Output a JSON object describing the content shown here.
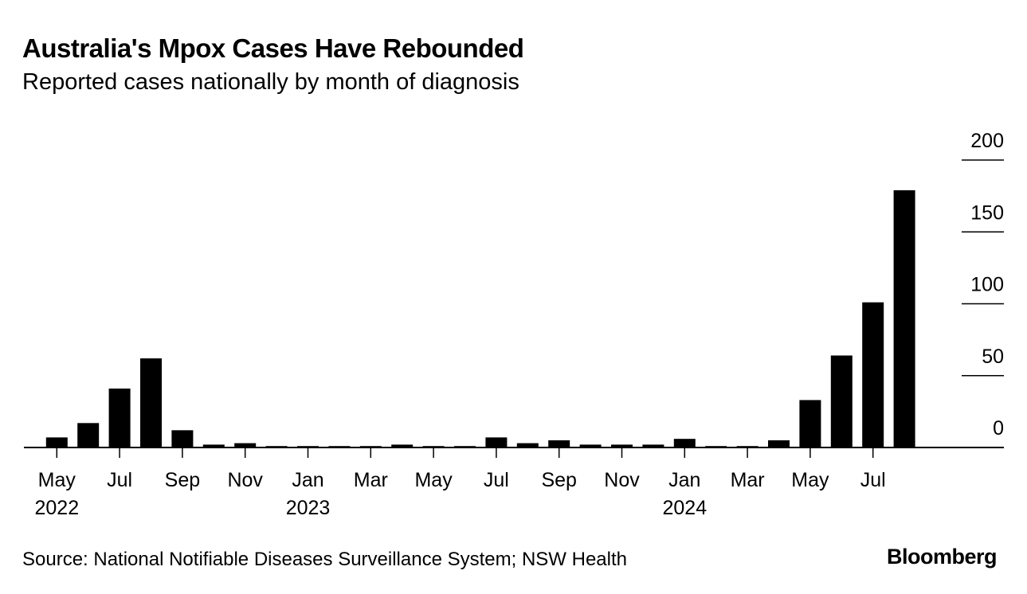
{
  "header": {
    "title": "Australia's Mpox Cases Have Rebounded",
    "subtitle": "Reported cases nationally by month of diagnosis"
  },
  "footer": {
    "source": "Source: National Notifiable Diseases Surveillance System; NSW Health",
    "brand": "Bloomberg"
  },
  "colors": {
    "bar": "#000000",
    "axis": "#000000",
    "text": "#000000"
  },
  "chart_data": {
    "type": "bar",
    "title": "Australia's Mpox Cases Have Rebounded",
    "subtitle": "Reported cases nationally by month of diagnosis",
    "xlabel": "",
    "ylabel": "",
    "ylim": [
      0,
      200
    ],
    "yticks": [
      0,
      50,
      100,
      150,
      200
    ],
    "grid": false,
    "yaxis_side": "right",
    "categories": [
      "May 2022",
      "Jun 2022",
      "Jul 2022",
      "Aug 2022",
      "Sep 2022",
      "Oct 2022",
      "Nov 2022",
      "Dec 2022",
      "Jan 2023",
      "Feb 2023",
      "Mar 2023",
      "Apr 2023",
      "May 2023",
      "Jun 2023",
      "Jul 2023",
      "Aug 2023",
      "Sep 2023",
      "Oct 2023",
      "Nov 2023",
      "Dec 2023",
      "Jan 2024",
      "Feb 2024",
      "Mar 2024",
      "Apr 2024",
      "May 2024",
      "Jun 2024",
      "Jul 2024",
      "Aug 2024"
    ],
    "values": [
      7,
      17,
      41,
      62,
      12,
      2,
      3,
      1,
      1,
      1,
      1,
      2,
      1,
      1,
      7,
      3,
      5,
      2,
      2,
      2,
      6,
      1,
      1,
      5,
      33,
      64,
      101,
      179
    ],
    "tick_labels": [
      {
        "index": 0,
        "month": "May",
        "year": "2022"
      },
      {
        "index": 2,
        "month": "Jul",
        "year": ""
      },
      {
        "index": 4,
        "month": "Sep",
        "year": ""
      },
      {
        "index": 6,
        "month": "Nov",
        "year": ""
      },
      {
        "index": 8,
        "month": "Jan",
        "year": "2023"
      },
      {
        "index": 10,
        "month": "Mar",
        "year": ""
      },
      {
        "index": 12,
        "month": "May",
        "year": ""
      },
      {
        "index": 14,
        "month": "Jul",
        "year": ""
      },
      {
        "index": 16,
        "month": "Sep",
        "year": ""
      },
      {
        "index": 18,
        "month": "Nov",
        "year": ""
      },
      {
        "index": 20,
        "month": "Jan",
        "year": "2024"
      },
      {
        "index": 22,
        "month": "Mar",
        "year": ""
      },
      {
        "index": 24,
        "month": "May",
        "year": ""
      },
      {
        "index": 26,
        "month": "Jul",
        "year": ""
      }
    ]
  }
}
